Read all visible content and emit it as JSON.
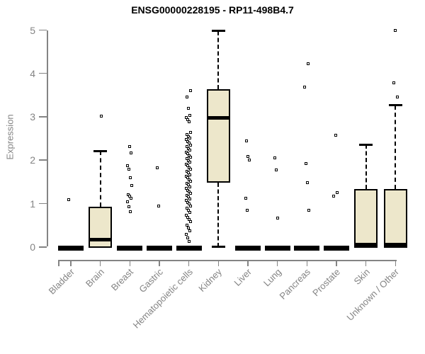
{
  "chart_data": {
    "type": "boxplot",
    "title": "ENSG00000228195 - RP11-498B4.7",
    "ylabel": "Expression",
    "xlabel": "",
    "ylim": [
      0,
      5
    ],
    "yticks": [
      0,
      1,
      2,
      3,
      4,
      5
    ],
    "grid": false,
    "legend": "none",
    "categories": [
      "Bladder",
      "Brain",
      "Breast",
      "Gastric",
      "Hematopoietic cells",
      "Kidney",
      "Liver",
      "Lung",
      "Pancreas",
      "Prostate",
      "Skin",
      "Unknown / Other"
    ],
    "boxes": [
      {
        "category": "Bladder",
        "q1": 0,
        "median": 0,
        "q3": 0,
        "whisker_low": 0,
        "whisker_high": 0,
        "outliers": [
          1.1
        ]
      },
      {
        "category": "Brain",
        "q1": 0,
        "median": 0.18,
        "q3": 0.95,
        "whisker_low": 0,
        "whisker_high": 2.23,
        "outliers": [
          3.02
        ]
      },
      {
        "category": "Breast",
        "q1": 0,
        "median": 0,
        "q3": 0,
        "whisker_low": 0,
        "whisker_high": 0,
        "outliers": [
          2.33,
          2.17,
          1.88,
          1.81,
          1.61,
          1.42,
          1.22,
          1.19,
          1.14,
          1.06,
          0.93,
          0.83
        ]
      },
      {
        "category": "Gastric",
        "q1": 0,
        "median": 0,
        "q3": 0,
        "whisker_low": 0,
        "whisker_high": 0,
        "outliers": [
          1.83,
          0.95
        ]
      },
      {
        "category": "Hematopoietic cells",
        "q1": 0,
        "median": 0,
        "q3": 0,
        "whisker_low": 0,
        "whisker_high": 0,
        "outliers": [
          3.62,
          3.47,
          3.21,
          3.05,
          3.0,
          2.95,
          2.9,
          2.65,
          2.6,
          2.56,
          2.52,
          2.48,
          2.44,
          2.4,
          2.36,
          2.32,
          2.28,
          2.24,
          2.2,
          2.16,
          2.12,
          2.08,
          2.04,
          2.0,
          1.96,
          1.92,
          1.88,
          1.84,
          1.8,
          1.76,
          1.72,
          1.68,
          1.64,
          1.6,
          1.56,
          1.52,
          1.48,
          1.44,
          1.4,
          1.36,
          1.32,
          1.28,
          1.24,
          1.2,
          1.16,
          1.12,
          1.08,
          1.04,
          1.0,
          0.95,
          0.9,
          0.85,
          0.8,
          0.75,
          0.7,
          0.65,
          0.6,
          0.52,
          0.45,
          0.38,
          0.3,
          0.22,
          0.14
        ]
      },
      {
        "category": "Kidney",
        "q1": 1.5,
        "median": 3.0,
        "q3": 3.65,
        "whisker_low": 0.02,
        "whisker_high": 5.0,
        "outliers": []
      },
      {
        "category": "Liver",
        "q1": 0,
        "median": 0,
        "q3": 0,
        "whisker_low": 0,
        "whisker_high": 0,
        "outliers": [
          2.45,
          2.09,
          2.02,
          1.14,
          0.86
        ]
      },
      {
        "category": "Lung",
        "q1": 0,
        "median": 0,
        "q3": 0,
        "whisker_low": 0,
        "whisker_high": 0,
        "outliers": [
          2.07,
          1.78,
          0.68
        ]
      },
      {
        "category": "Pancreas",
        "q1": 0,
        "median": 0,
        "q3": 0,
        "whisker_low": 0,
        "whisker_high": 0,
        "outliers": [
          4.24,
          3.7,
          1.93,
          1.5,
          0.85
        ]
      },
      {
        "category": "Prostate",
        "q1": 0,
        "median": 0,
        "q3": 0,
        "whisker_low": 0,
        "whisker_high": 0,
        "outliers": [
          2.59,
          1.27,
          1.19
        ]
      },
      {
        "category": "Skin",
        "q1": 0,
        "median": 0.02,
        "q3": 1.35,
        "whisker_low": 0,
        "whisker_high": 2.38,
        "outliers": []
      },
      {
        "category": "Unknown / Other",
        "q1": 0,
        "median": 0.02,
        "q3": 1.35,
        "whisker_low": 0,
        "whisker_high": 3.28,
        "outliers": [
          3.46,
          3.8,
          5.0
        ]
      }
    ],
    "colors": {
      "box_fill": "#EDE7CB",
      "box_border": "#000000",
      "median": "#000000",
      "outlier_border": "#000000",
      "axis": "#848484",
      "tick_label": "#848484",
      "title": "#000000"
    }
  }
}
